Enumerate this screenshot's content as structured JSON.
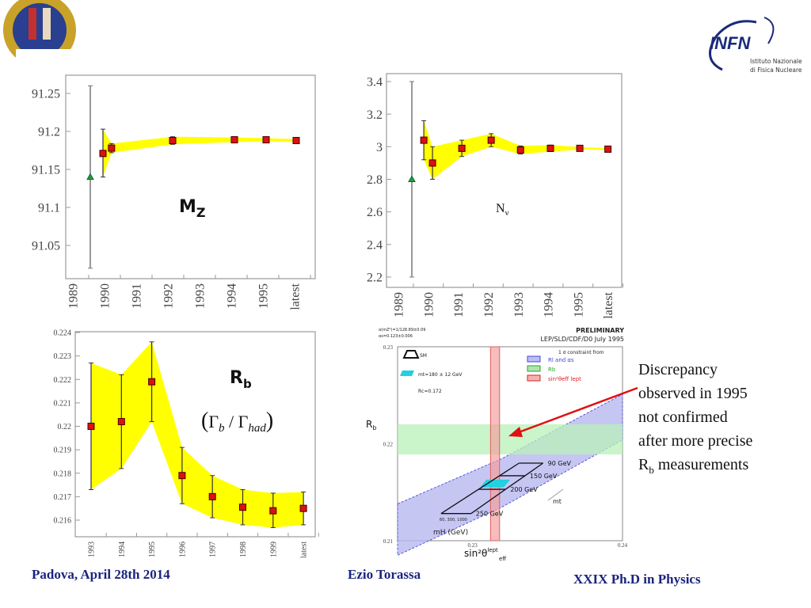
{
  "logos": {
    "left_seal": "Universitas Studii Paduani seal",
    "right_text": "INFN",
    "right_sub1": "Istituto Nazionale",
    "right_sub2": "di Fisica Nucleare"
  },
  "colors": {
    "band": "#ffff00",
    "point": "#dd1111",
    "first_point": "#2a9d2a",
    "footer": "#1a237e",
    "arrow": "#e01010"
  },
  "annotation": {
    "line1": "Discrepancy",
    "line2": "observed in 1995",
    "line3": "not confirmed",
    "line4": "after more precise",
    "line5_main": "R",
    "line5_sub": "b",
    "line5_rest": " measurements"
  },
  "footer": {
    "left": "Padova, April 28th 2014",
    "center": "Ezio Torassa",
    "right": "XXIX  Ph.D in Physics"
  },
  "chart_data": [
    {
      "type": "scatter",
      "label_main": "M",
      "label_sub": "Z",
      "xticks": [
        "1989",
        "1990",
        "1991",
        "1992",
        "1993",
        "1994",
        "1995",
        "latest"
      ],
      "yticks": [
        "91.05",
        "91.1",
        "91.15",
        "91.2",
        "91.25"
      ],
      "ylim": [
        91.0,
        91.27
      ],
      "first": {
        "x": 0.55,
        "y": 91.14,
        "lo": 91.02,
        "hi": 91.26
      },
      "points": [
        {
          "x": 0.95,
          "y": 91.171,
          "lo": 91.14,
          "hi": 91.203
        },
        {
          "x": 1.22,
          "y": 91.178,
          "lo": 91.172,
          "hi": 91.184
        },
        {
          "x": 3.15,
          "y": 91.188,
          "lo": 91.183,
          "hi": 91.193
        },
        {
          "x": 5.1,
          "y": 91.189,
          "lo": 91.186,
          "hi": 91.192
        },
        {
          "x": 6.1,
          "y": 91.189,
          "lo": 91.187,
          "hi": 91.191
        },
        {
          "x": 7.05,
          "y": 91.188,
          "lo": 91.186,
          "hi": 91.19
        }
      ]
    },
    {
      "type": "scatter",
      "label_main": "N",
      "label_sub": "ν",
      "xticks": [
        "1989",
        "1990",
        "1991",
        "1992",
        "1993",
        "1994",
        "1995",
        "latest"
      ],
      "yticks": [
        "2.2",
        "2.4",
        "2.6",
        "2.8",
        "3",
        "3.2",
        "3.4"
      ],
      "ylim": [
        2.15,
        3.45
      ],
      "first": {
        "x": 0.45,
        "y": 2.8,
        "lo": 2.2,
        "hi": 3.4
      },
      "points": [
        {
          "x": 0.85,
          "y": 3.04,
          "lo": 2.92,
          "hi": 3.16
        },
        {
          "x": 1.14,
          "y": 2.9,
          "lo": 2.8,
          "hi": 3.0
        },
        {
          "x": 2.12,
          "y": 2.99,
          "lo": 2.94,
          "hi": 3.04
        },
        {
          "x": 3.1,
          "y": 3.04,
          "lo": 3.0,
          "hi": 3.08
        },
        {
          "x": 4.08,
          "y": 2.98,
          "lo": 2.955,
          "hi": 3.005
        },
        {
          "x": 5.08,
          "y": 2.99,
          "lo": 2.97,
          "hi": 3.01
        },
        {
          "x": 6.06,
          "y": 2.99,
          "lo": 2.982,
          "hi": 2.998
        },
        {
          "x": 7.0,
          "y": 2.985,
          "lo": 2.98,
          "hi": 2.99
        }
      ]
    },
    {
      "type": "scatter",
      "label_main": "R",
      "label_sub": "b",
      "formula": "(Γb / Γhad)",
      "formula_parts": {
        "open": "(",
        "g1": "Γ",
        "s1": "b",
        "slash": " / ",
        "g2": "Γ",
        "s2": "had",
        "close": ")"
      },
      "xticks": [
        "1993",
        "1994",
        "1995",
        "1996",
        "1997",
        "1998",
        "1999",
        "latest"
      ],
      "yticks": [
        "0.216",
        "0.217",
        "0.218",
        "0.219",
        "0.22",
        "0.221",
        "0.222",
        "0.223",
        "0.224"
      ],
      "ylim": [
        0.2153,
        0.224
      ],
      "points": [
        {
          "x": 0,
          "y": 0.22,
          "lo": 0.2173,
          "hi": 0.2227
        },
        {
          "x": 1,
          "y": 0.2202,
          "lo": 0.2182,
          "hi": 0.2222
        },
        {
          "x": 2,
          "y": 0.2219,
          "lo": 0.2202,
          "hi": 0.2236
        },
        {
          "x": 3,
          "y": 0.2179,
          "lo": 0.2167,
          "hi": 0.2191
        },
        {
          "x": 4,
          "y": 0.217,
          "lo": 0.2161,
          "hi": 0.2179
        },
        {
          "x": 5,
          "y": 0.21655,
          "lo": 0.2158,
          "hi": 0.2173
        },
        {
          "x": 6,
          "y": 0.2164,
          "lo": 0.21568,
          "hi": 0.21715
        },
        {
          "x": 7,
          "y": 0.2165,
          "lo": 0.2158,
          "hi": 0.2172
        }
      ]
    },
    {
      "type": "area",
      "header_left1": "α(mZ²)=1/128.89±0.09",
      "header_left2": "αs=0.123±0.006",
      "header_right1": "PRELIMINARY",
      "header_right2": "LEP/SLD/CDF/D0 July 1995",
      "xlabel": "sin²θ",
      "xlabel_sup": "lept",
      "xlabel_sub": "eff",
      "ylabel": "R",
      "ylabel_sub": "b",
      "xlim": [
        0.225,
        0.24
      ],
      "ylim": [
        0.21,
        0.23
      ],
      "xticks": [
        {
          "v": 0.23,
          "label": "0.23"
        },
        {
          "v": 0.24,
          "label": "0.24"
        }
      ],
      "yticks": [
        {
          "v": 0.21,
          "label": "0.21"
        },
        {
          "v": 0.22,
          "label": "0.22"
        },
        {
          "v": 0.23,
          "label": "0.23"
        }
      ],
      "legend_title": "1 σ constraint from",
      "legend": [
        {
          "label": "Rl and αs",
          "color": "#4444dd"
        },
        {
          "label": "Rb",
          "color": "#22aa22"
        },
        {
          "label": "sin²θeff lept",
          "color": "#dd2222"
        }
      ],
      "sm_label": "SM",
      "mt_label": "mt=180 ± 12 GeV",
      "rc_label": "Rc=0.172",
      "mt_axis_label": "mt",
      "mh_label": "mH (GeV)",
      "mh_values": "60, 300, 1000",
      "bands": {
        "rl_alphas": {
          "top": [
            [
              0.225,
              0.2138
            ],
            [
              0.232,
              0.2185
            ],
            [
              0.24,
              0.2251
            ]
          ],
          "bottom": [
            [
              0.225,
              0.2085
            ],
            [
              0.232,
              0.2135
            ],
            [
              0.24,
              0.2204
            ]
          ]
        },
        "rb": [
          0.2189,
          0.222
        ],
        "sin2": [
          0.2312,
          0.2318
        ]
      },
      "sm_grid": [
        {
          "label": "90 GeV",
          "y": 0.218,
          "x0": 0.2331,
          "x1": 0.2347
        },
        {
          "label": "150 GeV",
          "y": 0.2167,
          "x0": 0.2318,
          "x1": 0.2335
        },
        {
          "label": "200 GeV",
          "y": 0.2153,
          "x0": 0.2304,
          "x1": 0.2322
        },
        {
          "label": "250 GeV",
          "y": 0.2128,
          "x0": 0.2279,
          "x1": 0.2299
        }
      ],
      "mt_box": {
        "x": [
          0.2305,
          0.2325
        ],
        "y": [
          0.2155,
          0.2163
        ]
      }
    }
  ]
}
